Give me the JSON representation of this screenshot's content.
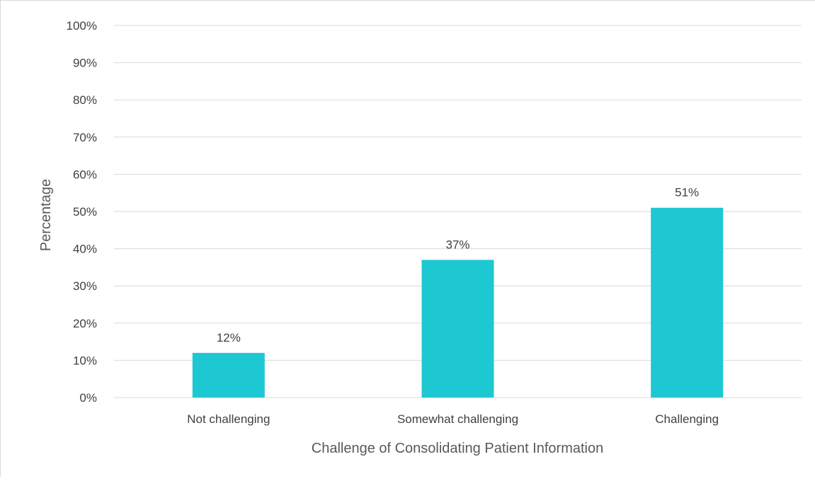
{
  "chart_data": {
    "type": "bar",
    "title": "",
    "xlabel": "Challenge of Consolidating Patient Information",
    "ylabel": "Percentage",
    "categories": [
      "Not challenging",
      "Somewhat challenging",
      "Challenging"
    ],
    "values": [
      12,
      37,
      51
    ],
    "data_labels": [
      "12%",
      "37%",
      "51%"
    ],
    "ylim": [
      0,
      100
    ],
    "yticks": [
      "0%",
      "10%",
      "20%",
      "30%",
      "40%",
      "50%",
      "60%",
      "70%",
      "80%",
      "90%",
      "100%"
    ],
    "grid": true,
    "legend": "none",
    "bar_color": "#1ec8d2",
    "gridline_color": "#d9d9d9"
  }
}
